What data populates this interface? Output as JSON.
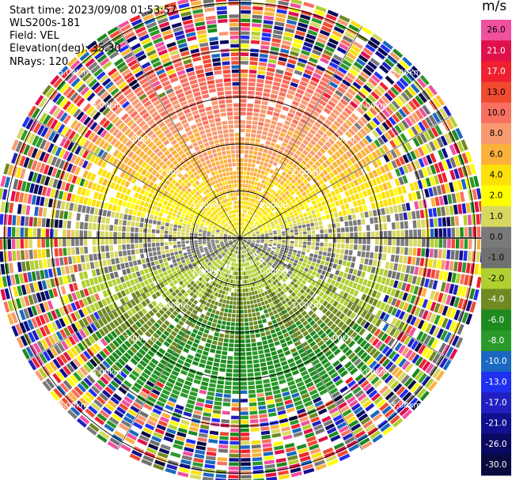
{
  "header": {
    "start_time": "Start time: 2023/09/08 01:53:57",
    "instrument": "WLS200s-181",
    "field": "Field: VEL",
    "elevation": "Elevation(deg): 35.30",
    "nrays": "NRays: 120"
  },
  "colorbar": {
    "unit": "m/s",
    "ticks": [
      "26.0",
      "21.0",
      "17.0",
      "13.0",
      "10.0",
      "8.0",
      "6.0",
      "4.0",
      "2.0",
      "1.0",
      "0.0",
      "-1.0",
      "-2.0",
      "-4.0",
      "-6.0",
      "-8.0",
      "-10.0",
      "-13.0",
      "-17.0",
      "-21.0",
      "-26.0",
      "-30.0"
    ],
    "colors": [
      "#f0509f",
      "#e0104a",
      "#f02030",
      "#f04a30",
      "#f87060",
      "#f89a70",
      "#fbb23b",
      "#fbe00a",
      "#ffff00",
      "#d8d860",
      "#7a7a7a",
      "#707070",
      "#b0cf30",
      "#6e8a20",
      "#1e8a1e",
      "#2a9a2a",
      "#1a68c0",
      "#2030f0",
      "#2020c0",
      "#101090",
      "#0a0a60",
      "#0a0a40"
    ]
  },
  "chart_data": {
    "type": "heatmap",
    "projection": "polar PPI (plan position indicator)",
    "field": "VEL",
    "units": "m/s",
    "nrays": 120,
    "range_rings_km": [
      1.0,
      2.0,
      3.0,
      4.0,
      5.0
    ],
    "range_labels": [
      "1.00km",
      "2.00km",
      "3.00km",
      "4.00km",
      "5.00km"
    ],
    "pattern": {
      "north_sector_velocity_ms": [
        2.0,
        13.0
      ],
      "south_sector_velocity_ms": [
        -10.0,
        -2.0
      ],
      "east_west_velocity_ms": [
        0.0,
        1.0
      ],
      "outer_range_km": [
        3.5,
        5.5
      ],
      "outer_range_state": "noise (random velocities)"
    },
    "colorbar_range_ms": [
      -30.0,
      26.0
    ]
  }
}
